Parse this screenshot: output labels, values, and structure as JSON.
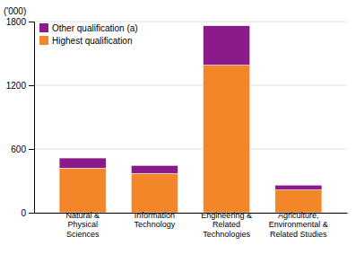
{
  "chart_data": {
    "type": "bar",
    "stacked": true,
    "categories": [
      "Natural &\nPhysical\nSciences",
      "Information\nTechnology",
      "Engineering &\nRelated\nTechnologies",
      "Agriculture,\nEnvironmental &\nRelated Studies"
    ],
    "series": [
      {
        "name": "Highest qualification",
        "color": "#F4862A",
        "values": [
          420,
          370,
          1390,
          215
        ]
      },
      {
        "name": "Other qualification (a)",
        "color": "#8B1A8B",
        "values": [
          95,
          75,
          370,
          45
        ]
      }
    ],
    "ylabel": "('000)",
    "ylim": [
      0,
      1800
    ],
    "yticks": [
      0,
      600,
      1200,
      1800
    ],
    "grid": true,
    "legend": "upper left"
  }
}
